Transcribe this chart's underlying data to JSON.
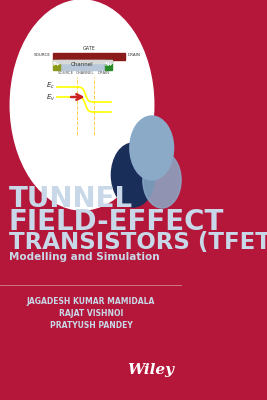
{
  "bg_color": "#b5173a",
  "title_line1": "TUNNEL",
  "title_line2": "FIELD-EFFECT",
  "title_line3": "TRANSISTORS (TFET):",
  "subtitle": "Modelling and Simulation",
  "author1": "JAGADESH KUMAR MAMIDALA",
  "author2": "RAJAT VISHNOI",
  "author3": "PRATYUSH PANDEY",
  "title_color": "#c8d8e8",
  "subtitle_color": "#c8d8e8",
  "author_color": "#c8d8e8",
  "circle_color": "#ffffff",
  "dot1_color": "#1a2e5a",
  "dot2_color": "#8aaac8",
  "dot3_color": "#8aaac8",
  "wiley_color": "#ffffff"
}
